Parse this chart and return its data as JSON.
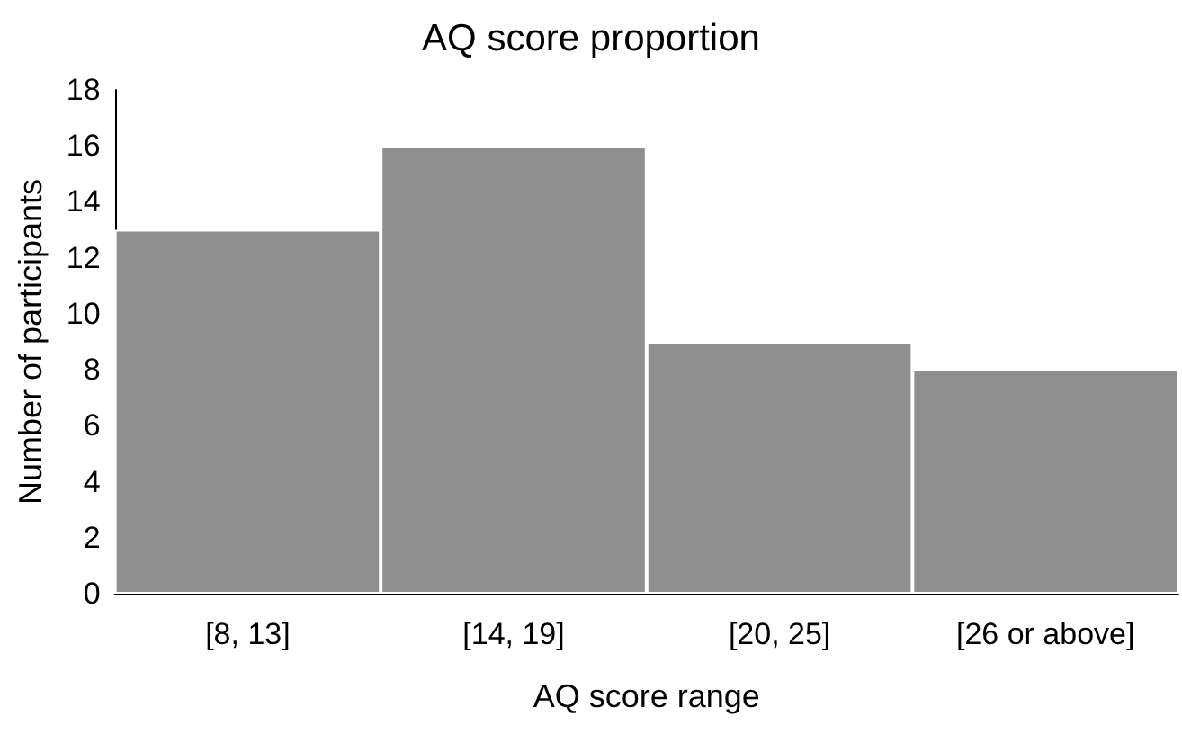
{
  "chart_data": {
    "type": "bar",
    "title": "AQ score proportion",
    "xlabel": "AQ score range",
    "ylabel": "Number of participants",
    "categories": [
      "[8, 13]",
      "[14, 19]",
      "[20, 25]",
      "[26 or above]"
    ],
    "values": [
      13,
      16,
      9,
      8
    ],
    "color": "#8f8f8f",
    "ylim": [
      0,
      18
    ],
    "yticks": [
      0,
      2,
      4,
      6,
      8,
      10,
      12,
      14,
      16,
      18
    ]
  }
}
